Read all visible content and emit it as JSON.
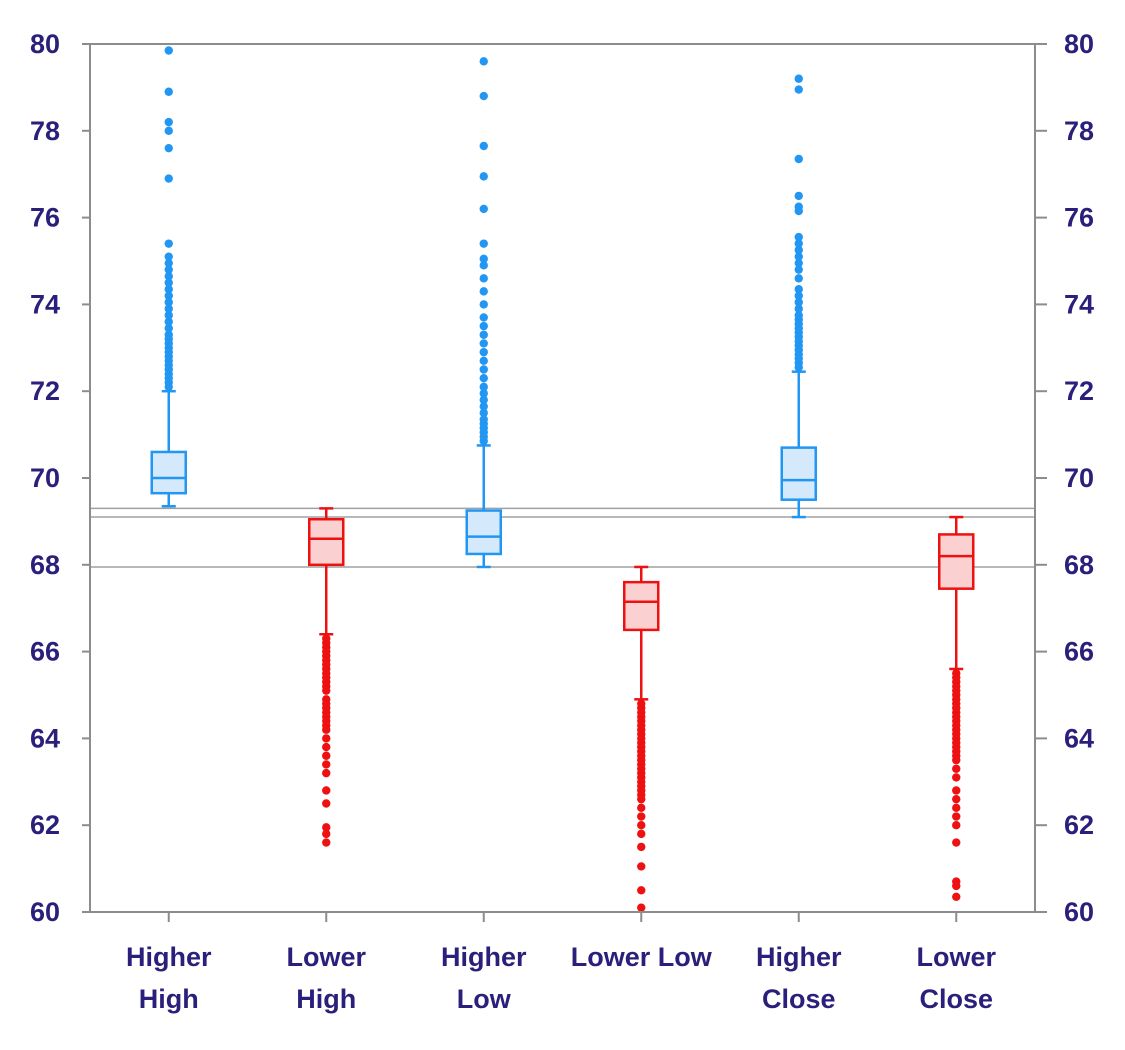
{
  "chart_data": {
    "type": "box",
    "title": "",
    "xlabel": "",
    "ylabel": "",
    "ylim": [
      60,
      80
    ],
    "yticks": [
      60,
      62,
      64,
      66,
      68,
      70,
      72,
      74,
      76,
      78,
      80
    ],
    "y_axis_sides": [
      "left",
      "right"
    ],
    "grid": false,
    "legend": "none",
    "reference_lines": [
      69.3,
      69.1,
      67.95
    ],
    "colors": {
      "up": "#2196f3",
      "up_fill": "#d4e9fb",
      "down": "#ee1111",
      "down_fill": "#fbd0d0",
      "reference": "#a0a0a0",
      "axis": "#8c8c8c",
      "label": "#2a1f7a"
    },
    "categories": [
      {
        "label_lines": [
          "Higher",
          "High"
        ],
        "color_key": "up",
        "whisker_low": 69.35,
        "q1": 69.65,
        "median": 70.0,
        "q3": 70.6,
        "whisker_high": 72.0,
        "outliers": [
          72.1,
          72.2,
          72.3,
          72.4,
          72.5,
          72.6,
          72.7,
          72.8,
          72.9,
          73.0,
          73.1,
          73.2,
          73.3,
          73.45,
          73.6,
          73.75,
          73.9,
          74.05,
          74.2,
          74.35,
          74.5,
          74.65,
          74.8,
          74.95,
          75.1,
          75.4,
          76.9,
          77.6,
          78.0,
          78.2,
          78.9,
          79.85
        ]
      },
      {
        "label_lines": [
          "Lower",
          "High"
        ],
        "color_key": "down",
        "whisker_low": 66.4,
        "q1": 68.0,
        "median": 68.6,
        "q3": 69.05,
        "whisker_high": 69.3,
        "outliers": [
          66.3,
          66.2,
          66.1,
          66.0,
          65.9,
          65.8,
          65.7,
          65.6,
          65.5,
          65.4,
          65.3,
          65.2,
          65.1,
          64.9,
          64.8,
          64.7,
          64.6,
          64.5,
          64.4,
          64.3,
          64.2,
          64.0,
          63.8,
          63.6,
          63.4,
          63.2,
          62.8,
          62.5,
          61.95,
          61.8,
          61.6
        ]
      },
      {
        "label_lines": [
          "Higher",
          "Low"
        ],
        "color_key": "up",
        "whisker_low": 67.95,
        "q1": 68.25,
        "median": 68.65,
        "q3": 69.25,
        "whisker_high": 70.75,
        "outliers": [
          70.85,
          70.95,
          71.05,
          71.15,
          71.25,
          71.35,
          71.5,
          71.65,
          71.8,
          71.95,
          72.1,
          72.3,
          72.5,
          72.7,
          72.9,
          73.1,
          73.3,
          73.5,
          73.7,
          74.0,
          74.3,
          74.6,
          74.9,
          75.05,
          75.4,
          76.2,
          76.95,
          77.65,
          78.8,
          79.6
        ]
      },
      {
        "label_lines": [
          "Lower Low"
        ],
        "color_key": "down",
        "whisker_low": 64.9,
        "q1": 66.5,
        "median": 67.15,
        "q3": 67.6,
        "whisker_high": 67.95,
        "outliers": [
          64.8,
          64.7,
          64.6,
          64.5,
          64.4,
          64.3,
          64.2,
          64.1,
          64.0,
          63.9,
          63.8,
          63.7,
          63.6,
          63.5,
          63.4,
          63.3,
          63.2,
          63.1,
          63.0,
          62.9,
          62.8,
          62.7,
          62.6,
          62.4,
          62.2,
          62.0,
          61.8,
          61.5,
          61.05,
          60.5,
          60.1
        ]
      },
      {
        "label_lines": [
          "Higher",
          "Close"
        ],
        "color_key": "up",
        "whisker_low": 69.1,
        "q1": 69.5,
        "median": 69.95,
        "q3": 70.7,
        "whisker_high": 72.45,
        "outliers": [
          72.55,
          72.65,
          72.75,
          72.85,
          72.95,
          73.05,
          73.15,
          73.25,
          73.35,
          73.45,
          73.55,
          73.65,
          73.75,
          73.9,
          74.05,
          74.2,
          74.35,
          74.6,
          74.8,
          74.95,
          75.1,
          75.25,
          75.4,
          75.55,
          76.15,
          76.25,
          76.5,
          77.35,
          78.95,
          79.2
        ]
      },
      {
        "label_lines": [
          "Lower",
          "Close"
        ],
        "color_key": "down",
        "whisker_low": 65.6,
        "q1": 67.45,
        "median": 68.2,
        "q3": 68.7,
        "whisker_high": 69.1,
        "outliers": [
          65.5,
          65.4,
          65.3,
          65.2,
          65.1,
          65.0,
          64.9,
          64.8,
          64.7,
          64.6,
          64.5,
          64.4,
          64.3,
          64.2,
          64.1,
          64.0,
          63.9,
          63.8,
          63.7,
          63.6,
          63.5,
          63.3,
          63.1,
          62.8,
          62.6,
          62.4,
          62.2,
          62.0,
          61.6,
          60.7,
          60.6,
          60.35
        ]
      }
    ]
  }
}
